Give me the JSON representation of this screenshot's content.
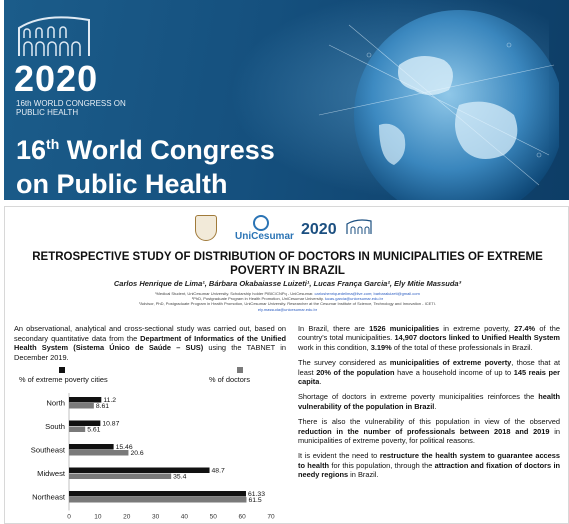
{
  "banner": {
    "year": "2020",
    "subtitle": "16th WORLD CONGRESS ON PUBLIC HEALTH",
    "title_line1": "16",
    "title_sup": "th",
    "title_line1_rest": " World Congress",
    "title_line2": "on Public Health"
  },
  "poster": {
    "logo_text": "UniCesumar",
    "mini_year": "2020",
    "title": "RETROSPECTIVE STUDY OF DISTRIBUTION OF DOCTORS IN MUNICIPALITIES OF EXTREME POVERTY IN BRAZIL",
    "authors": "Carlos Henrique de Lima¹, Bárbara Okabaiasse Luizeti¹, Lucas França Garcia², Ely Mitie Massuda³",
    "affiliation1": "¹Medical Student, UniCesumar University. Scholarship holder PIBIC/CNPq - UniCesumar.",
    "affiliation1_links": "carloshenriquedelima@live.com; barbaraluizeti@gmail.com",
    "affiliation2": "²PhD, Postgraduate Program in Health Promotion, UniCesumar University.",
    "affiliation2_link": "lucas.garcia@unicesumar.edu.br",
    "affiliation3": "³Advisor, PhD, Postgraduate Program in Health Promotion, UniCesumar University. Researcher at the Cesumar Institute of Science, Technology and Innovation - ICETI.",
    "affiliation3_link": "ely.massuda@unicesumar.edu.br",
    "left_text": {
      "p1": "An observational, analytical and cross-sectional study was carried out, based on secondary quantitative data from the ",
      "p1_bold": "Department of Informatics of the Unified Health System (Sistema Único de Saúde – SUS)",
      "p1_end": " using the TABNET in December 2019."
    },
    "right_text": {
      "r1a": "In Brazil, there are ",
      "r1b": "1526 municipalities",
      "r1c": " in extreme poverty, ",
      "r1d": "27.4%",
      "r1e": " of the country's total municipalities. ",
      "r1f": "14,907 doctors linked to Unified Health System",
      "r1g": " work in this condition, ",
      "r1h": "3.19%",
      "r1i": " of the total of these professionals in Brazil.",
      "r2a": "The survey considered as ",
      "r2b": "municipalities of extreme poverty",
      "r2c": ", those that at least ",
      "r2d": "20% of the population",
      "r2e": " have a household income of up to ",
      "r2f": "145 reais per capita",
      "r2g": ".",
      "r3a": "Shortage of doctors in extreme poverty municipalities reinforces the ",
      "r3b": "health vulnerability of the population in Brazil",
      "r3c": ".",
      "r4a": "There is also the vulnerability of this population in view of the observed ",
      "r4b": "reduction in the number of professionals between 2018 and 2019",
      "r4c": " in municipalities of extreme poverty, for political reasons.",
      "r5a": "It is evident the need to ",
      "r5b": "restructure the health system to guarantee access to health",
      "r5c": " for this population, through the ",
      "r5d": "attraction and fixation of doctors in needy regions",
      "r5e": " in Brazil."
    }
  },
  "chart_data": {
    "type": "bar",
    "orientation": "horizontal",
    "categories": [
      "North",
      "South",
      "Southeast",
      "Midwest",
      "Northeast"
    ],
    "series": [
      {
        "name": "% of extreme poverty cities",
        "values": [
          11.2,
          10.87,
          15.46,
          48.7,
          61.33
        ],
        "color": "#111111"
      },
      {
        "name": "% of doctors",
        "values": [
          8.61,
          5.61,
          20.6,
          35.4,
          61.5
        ],
        "color": "#7a7a7a"
      }
    ],
    "value_labels": {
      "poverty": [
        "11.2",
        "10.87",
        "15.46",
        "48.7",
        "61.33"
      ],
      "doctors": [
        "8.61",
        "5.61",
        "20.6",
        "35.4",
        "61.5"
      ]
    },
    "xticks": [
      "0",
      "10",
      "20",
      "30",
      "40",
      "50",
      "60",
      "70"
    ],
    "xlim": [
      0,
      70
    ],
    "legend_placement": "top",
    "grid": false
  }
}
